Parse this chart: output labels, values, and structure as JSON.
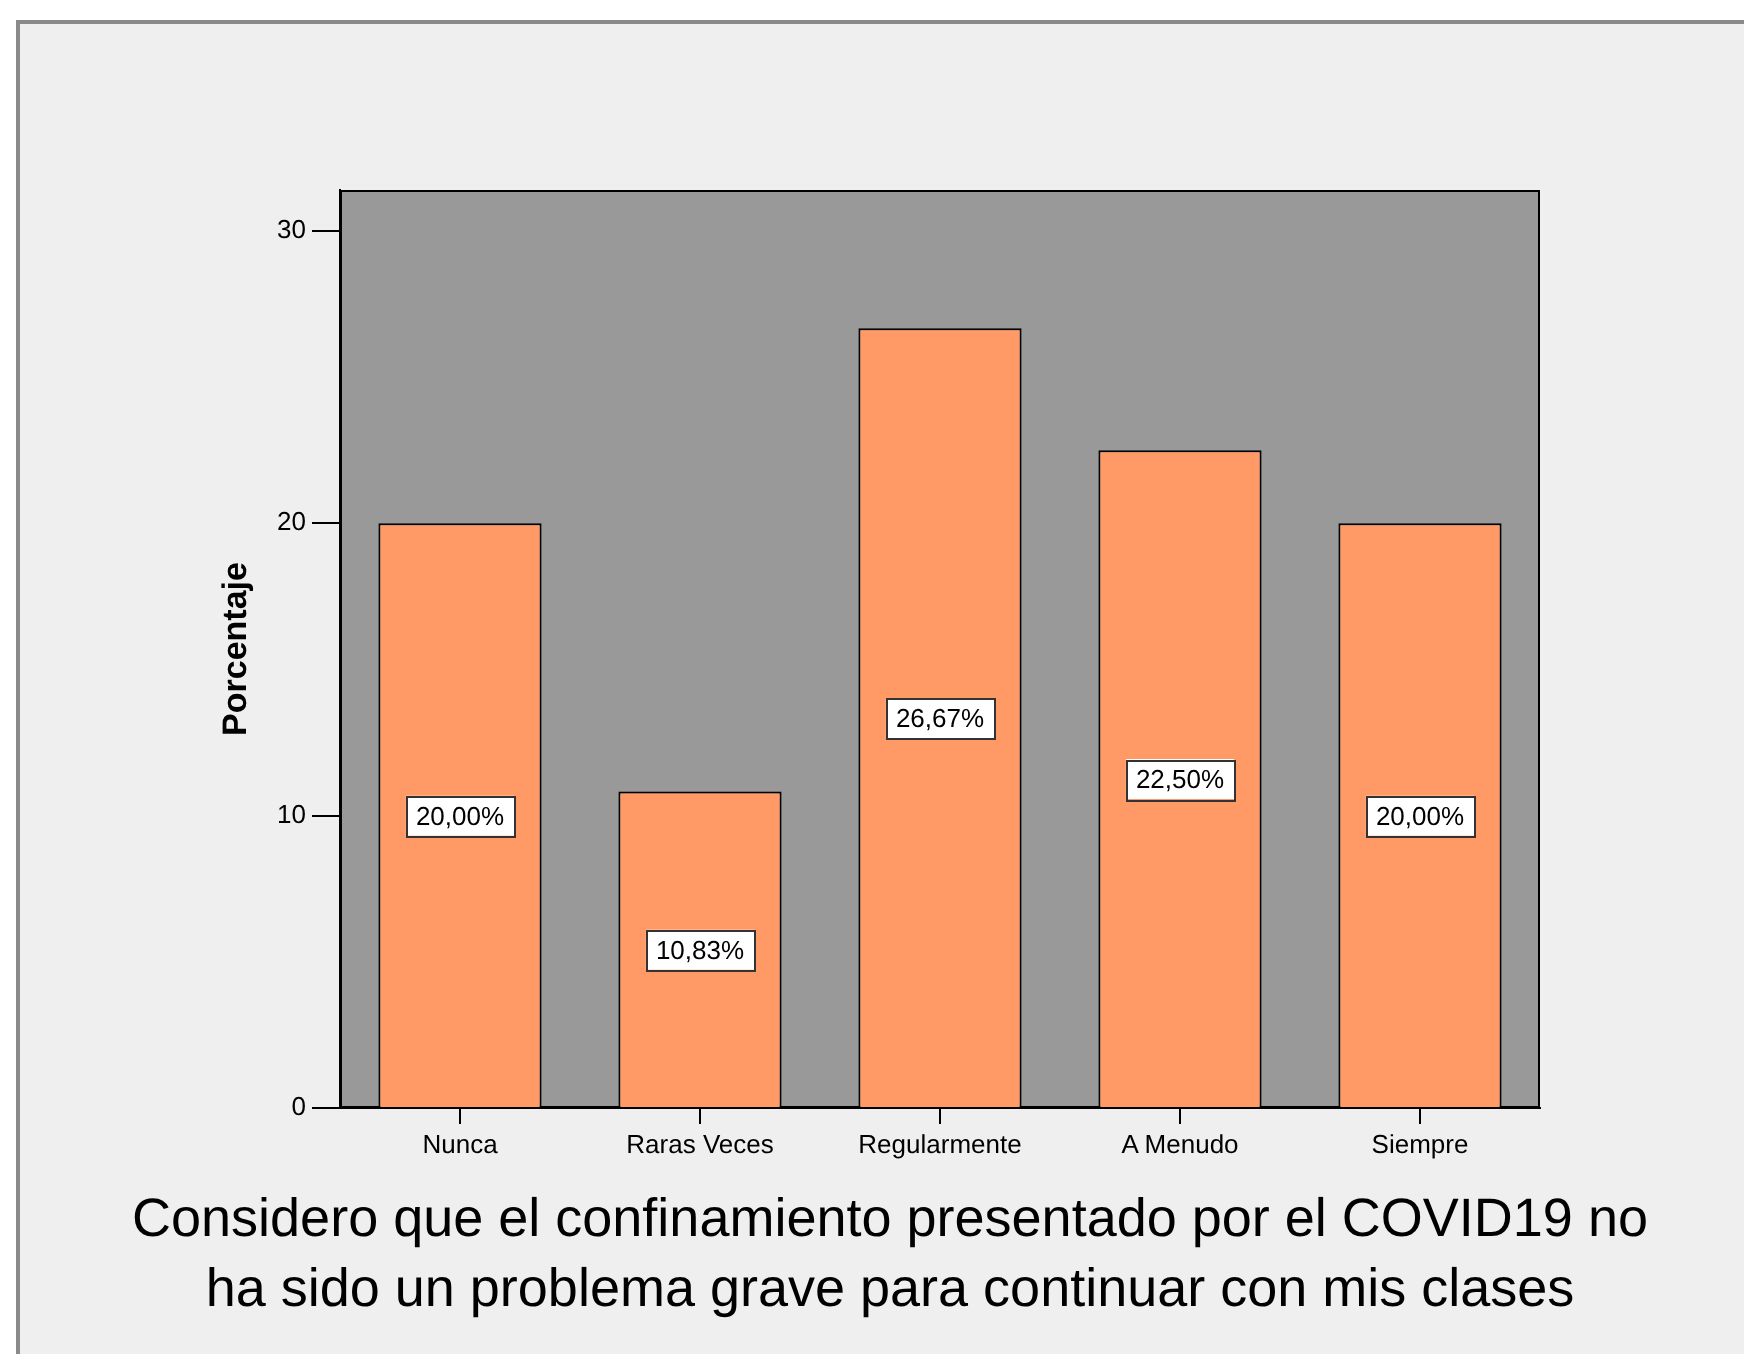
{
  "chart_data": {
    "type": "bar",
    "xlabel": "Considero que el confinamiento presentado por el COVID19 no ha sido un problema grave para continuar con mis clases",
    "ylabel": "Porcentaje",
    "categories": [
      "Nunca",
      "Raras Veces",
      "Regularmente",
      "A Menudo",
      "Siempre"
    ],
    "values": [
      20.0,
      10.83,
      26.67,
      22.5,
      20.0
    ],
    "value_labels": [
      "20,00%",
      "10,83%",
      "26,67%",
      "22,50%",
      "20,00%"
    ],
    "color": "#ff9966",
    "ylim": [
      0,
      31.4
    ],
    "yticks": [
      0,
      10,
      20,
      30
    ]
  }
}
